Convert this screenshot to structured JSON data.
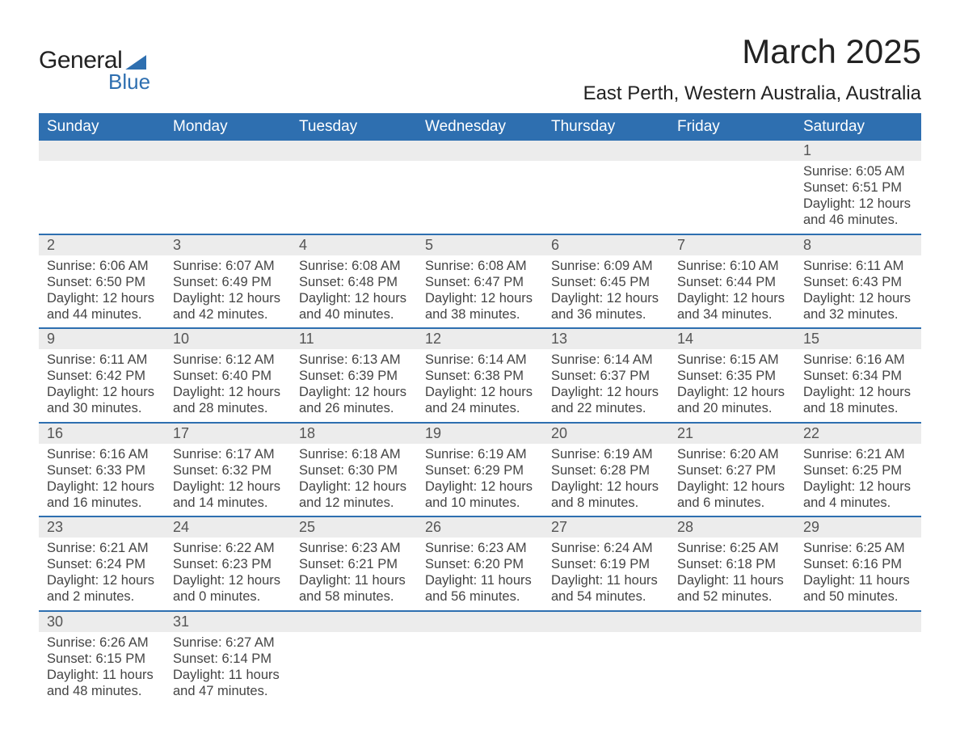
{
  "logo": {
    "word1": "General",
    "word2": "Blue"
  },
  "title": "March 2025",
  "location": "East Perth, Western Australia, Australia",
  "colors": {
    "header_bg": "#2e6fb0",
    "header_text": "#ffffff",
    "daynum_bg": "#ececec",
    "row_border": "#2e6fb0",
    "body_text": "#444444",
    "page_bg": "#ffffff"
  },
  "day_headers": [
    "Sunday",
    "Monday",
    "Tuesday",
    "Wednesday",
    "Thursday",
    "Friday",
    "Saturday"
  ],
  "weeks": [
    [
      null,
      null,
      null,
      null,
      null,
      null,
      {
        "n": "1",
        "sr": "6:05 AM",
        "ss": "6:51 PM",
        "dl": "12 hours and 46 minutes."
      }
    ],
    [
      {
        "n": "2",
        "sr": "6:06 AM",
        "ss": "6:50 PM",
        "dl": "12 hours and 44 minutes."
      },
      {
        "n": "3",
        "sr": "6:07 AM",
        "ss": "6:49 PM",
        "dl": "12 hours and 42 minutes."
      },
      {
        "n": "4",
        "sr": "6:08 AM",
        "ss": "6:48 PM",
        "dl": "12 hours and 40 minutes."
      },
      {
        "n": "5",
        "sr": "6:08 AM",
        "ss": "6:47 PM",
        "dl": "12 hours and 38 minutes."
      },
      {
        "n": "6",
        "sr": "6:09 AM",
        "ss": "6:45 PM",
        "dl": "12 hours and 36 minutes."
      },
      {
        "n": "7",
        "sr": "6:10 AM",
        "ss": "6:44 PM",
        "dl": "12 hours and 34 minutes."
      },
      {
        "n": "8",
        "sr": "6:11 AM",
        "ss": "6:43 PM",
        "dl": "12 hours and 32 minutes."
      }
    ],
    [
      {
        "n": "9",
        "sr": "6:11 AM",
        "ss": "6:42 PM",
        "dl": "12 hours and 30 minutes."
      },
      {
        "n": "10",
        "sr": "6:12 AM",
        "ss": "6:40 PM",
        "dl": "12 hours and 28 minutes."
      },
      {
        "n": "11",
        "sr": "6:13 AM",
        "ss": "6:39 PM",
        "dl": "12 hours and 26 minutes."
      },
      {
        "n": "12",
        "sr": "6:14 AM",
        "ss": "6:38 PM",
        "dl": "12 hours and 24 minutes."
      },
      {
        "n": "13",
        "sr": "6:14 AM",
        "ss": "6:37 PM",
        "dl": "12 hours and 22 minutes."
      },
      {
        "n": "14",
        "sr": "6:15 AM",
        "ss": "6:35 PM",
        "dl": "12 hours and 20 minutes."
      },
      {
        "n": "15",
        "sr": "6:16 AM",
        "ss": "6:34 PM",
        "dl": "12 hours and 18 minutes."
      }
    ],
    [
      {
        "n": "16",
        "sr": "6:16 AM",
        "ss": "6:33 PM",
        "dl": "12 hours and 16 minutes."
      },
      {
        "n": "17",
        "sr": "6:17 AM",
        "ss": "6:32 PM",
        "dl": "12 hours and 14 minutes."
      },
      {
        "n": "18",
        "sr": "6:18 AM",
        "ss": "6:30 PM",
        "dl": "12 hours and 12 minutes."
      },
      {
        "n": "19",
        "sr": "6:19 AM",
        "ss": "6:29 PM",
        "dl": "12 hours and 10 minutes."
      },
      {
        "n": "20",
        "sr": "6:19 AM",
        "ss": "6:28 PM",
        "dl": "12 hours and 8 minutes."
      },
      {
        "n": "21",
        "sr": "6:20 AM",
        "ss": "6:27 PM",
        "dl": "12 hours and 6 minutes."
      },
      {
        "n": "22",
        "sr": "6:21 AM",
        "ss": "6:25 PM",
        "dl": "12 hours and 4 minutes."
      }
    ],
    [
      {
        "n": "23",
        "sr": "6:21 AM",
        "ss": "6:24 PM",
        "dl": "12 hours and 2 minutes."
      },
      {
        "n": "24",
        "sr": "6:22 AM",
        "ss": "6:23 PM",
        "dl": "12 hours and 0 minutes."
      },
      {
        "n": "25",
        "sr": "6:23 AM",
        "ss": "6:21 PM",
        "dl": "11 hours and 58 minutes."
      },
      {
        "n": "26",
        "sr": "6:23 AM",
        "ss": "6:20 PM",
        "dl": "11 hours and 56 minutes."
      },
      {
        "n": "27",
        "sr": "6:24 AM",
        "ss": "6:19 PM",
        "dl": "11 hours and 54 minutes."
      },
      {
        "n": "28",
        "sr": "6:25 AM",
        "ss": "6:18 PM",
        "dl": "11 hours and 52 minutes."
      },
      {
        "n": "29",
        "sr": "6:25 AM",
        "ss": "6:16 PM",
        "dl": "11 hours and 50 minutes."
      }
    ],
    [
      {
        "n": "30",
        "sr": "6:26 AM",
        "ss": "6:15 PM",
        "dl": "11 hours and 48 minutes."
      },
      {
        "n": "31",
        "sr": "6:27 AM",
        "ss": "6:14 PM",
        "dl": "11 hours and 47 minutes."
      },
      null,
      null,
      null,
      null,
      null
    ]
  ],
  "labels": {
    "sunrise": "Sunrise: ",
    "sunset": "Sunset: ",
    "daylight": "Daylight: "
  }
}
